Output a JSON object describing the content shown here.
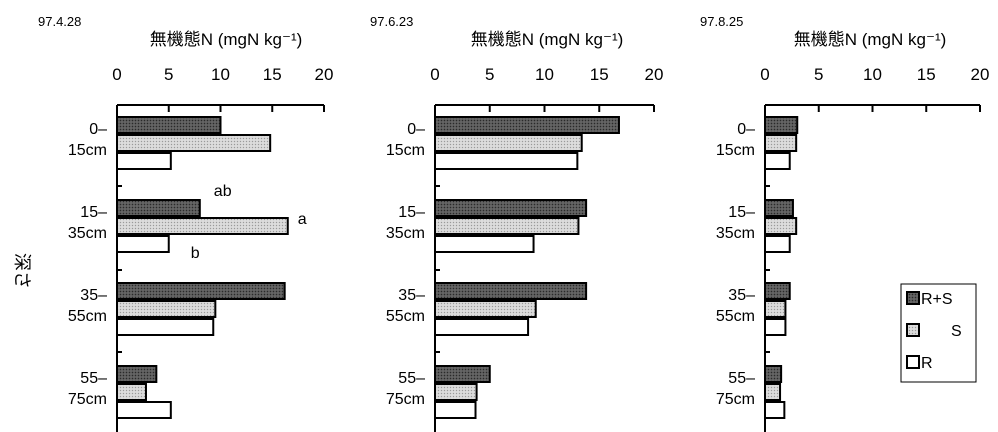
{
  "figure": {
    "ylabel": "深さ"
  },
  "legend": {
    "items": [
      {
        "label": "R+S",
        "pattern": "dark"
      },
      {
        "label": "S",
        "pattern": "light"
      },
      {
        "label": "R",
        "pattern": "white"
      }
    ]
  },
  "chart_data": [
    {
      "type": "bar",
      "orientation": "horizontal",
      "date": "97.4.28",
      "title": "無機態N (mgN kg⁻¹)",
      "xlim": [
        0,
        20
      ],
      "xticks": [
        "0",
        "5",
        "10",
        "15",
        "20"
      ],
      "categories": [
        [
          "0–",
          "15cm"
        ],
        [
          "15–",
          "35cm"
        ],
        [
          "35–",
          "55cm"
        ],
        [
          "55–",
          "75cm"
        ]
      ],
      "series": [
        {
          "name": "R+S",
          "values": [
            10,
            8,
            16.2,
            3.8
          ]
        },
        {
          "name": "S",
          "values": [
            14.8,
            16.5,
            9.5,
            2.8
          ]
        },
        {
          "name": "R",
          "values": [
            5.2,
            5,
            9.3,
            5.2
          ]
        }
      ],
      "annotations": [
        {
          "text": "ab",
          "category": 1,
          "series": 0
        },
        {
          "text": "a",
          "category": 1,
          "series": 1
        },
        {
          "text": "b",
          "category": 1,
          "series": 2
        }
      ]
    },
    {
      "type": "bar",
      "orientation": "horizontal",
      "date": "97.6.23",
      "title": "無機態N (mgN kg⁻¹)",
      "xlim": [
        0,
        20
      ],
      "xticks": [
        "0",
        "5",
        "10",
        "15",
        "20"
      ],
      "categories": [
        [
          "0–",
          "15cm"
        ],
        [
          "15–",
          "35cm"
        ],
        [
          "35–",
          "55cm"
        ],
        [
          "55–",
          "75cm"
        ]
      ],
      "series": [
        {
          "name": "R+S",
          "values": [
            16.8,
            13.8,
            13.8,
            5
          ]
        },
        {
          "name": "S",
          "values": [
            13.4,
            13.1,
            9.2,
            3.8
          ]
        },
        {
          "name": "R",
          "values": [
            13,
            9,
            8.5,
            3.7
          ]
        }
      ],
      "annotations": []
    },
    {
      "type": "bar",
      "orientation": "horizontal",
      "date": "97.8.25",
      "title": "無機態N (mgN kg⁻¹)",
      "xlim": [
        0,
        20
      ],
      "xticks": [
        "0",
        "5",
        "10",
        "15",
        "20"
      ],
      "categories": [
        [
          "0–",
          "15cm"
        ],
        [
          "15–",
          "35cm"
        ],
        [
          "35–",
          "55cm"
        ],
        [
          "55–",
          "75cm"
        ]
      ],
      "series": [
        {
          "name": "R+S",
          "values": [
            3,
            2.6,
            2.3,
            1.5
          ]
        },
        {
          "name": "S",
          "values": [
            2.9,
            2.9,
            1.9,
            1.4
          ]
        },
        {
          "name": "R",
          "values": [
            2.3,
            2.3,
            1.9,
            1.8
          ]
        }
      ],
      "annotations": []
    }
  ]
}
